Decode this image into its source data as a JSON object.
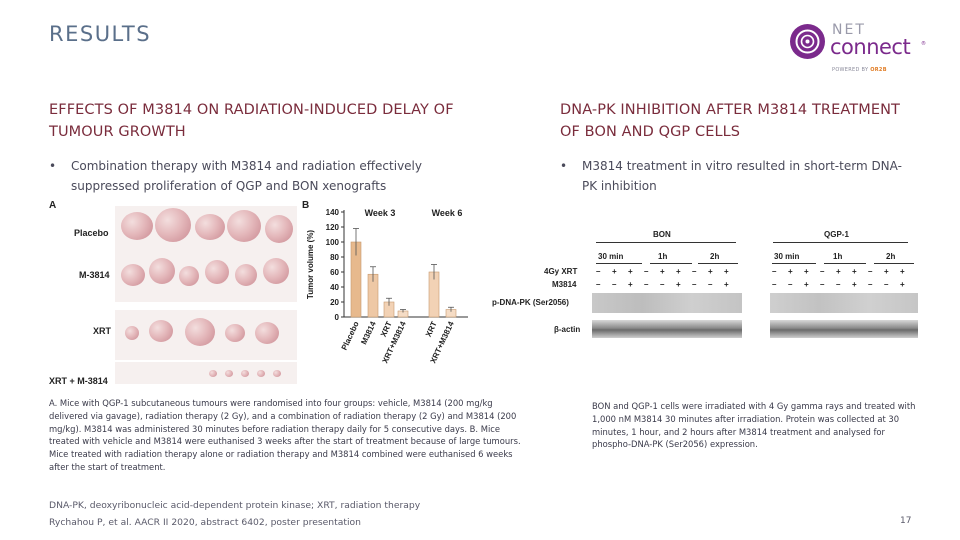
{
  "slide": {
    "title": "RESULTS",
    "page_number": "17"
  },
  "logo": {
    "line1": "NET",
    "line2": "connect",
    "powered_prefix": "POWERED BY",
    "powered_brand": "OR2B"
  },
  "left": {
    "heading": "EFFECTS OF M3814 ON RADIATION-INDUCED DELAY OF TUMOUR GROWTH",
    "bullet": "Combination therapy with M3814 and radiation effectively suppressed proliferation of QGP and BON xenografts",
    "panel_a": "A",
    "panel_b": "B",
    "rows": [
      "Placebo",
      "M-3814",
      "XRT",
      "XRT + M-3814"
    ],
    "caption": "A. Mice with QGP-1 subcutaneous tumours were randomised into four groups: vehicle, M3814 (200 mg/kg delivered via gavage), radiation therapy (2 Gy), and a combination of radiation therapy (2 Gy) and M3814 (200 mg/kg). M3814 was administered 30 minutes before radiation therapy daily for 5 consecutive days. B. Mice treated with vehicle and M3814 were euthanised 3 weeks after the start of treatment because of large tumours. Mice treated with radiation therapy alone or radiation therapy and M3814 combined were euthanised 6 weeks after the start of treatment."
  },
  "right": {
    "heading": "DNA-PK INHIBITION AFTER M3814 TREATMENT OF BON AND QGP CELLS",
    "bullet": "M3814 treatment in vitro resulted in short-term DNA-PK inhibition",
    "caption": "BON and QGP-1 cells were irradiated with 4 Gy gamma rays and treated with 1,000 nM M3814 30 minutes after irradiation. Protein was collected at 30 minutes, 1 hour, and 2 hours after M3814 treatment and analysed for phospho-DNA-PK (Ser2056) expression."
  },
  "western_blot": {
    "cell_lines": [
      "BON",
      "QGP-1"
    ],
    "timepoints": [
      "30 min",
      "1h",
      "2h"
    ],
    "row_labels": [
      "4Gy XRT",
      "M3814"
    ],
    "xrt_signs": [
      "–",
      "+",
      "+"
    ],
    "m3814_signs": [
      "–",
      "–",
      "+"
    ],
    "bands": [
      "p-DNA-PK (Ser2056)",
      "β-actin"
    ]
  },
  "chart_data": {
    "type": "bar",
    "ylabel": "Tumor volume (%)",
    "ylim": [
      0,
      140
    ],
    "yticks": [
      0,
      20,
      40,
      60,
      80,
      100,
      120,
      140
    ],
    "categories": [
      "Placebo",
      "M3814",
      "XRT",
      "XRT+M3814",
      "XRT",
      "XRT+M3814"
    ],
    "values": [
      100,
      57,
      20,
      8,
      60,
      10
    ],
    "errors": [
      18,
      10,
      5,
      2,
      10,
      3
    ],
    "groups": [
      {
        "label": "Week 3",
        "categories": [
          "Placebo",
          "M3814",
          "XRT",
          "XRT+M3814"
        ]
      },
      {
        "label": "Week 6",
        "categories": [
          "XRT",
          "XRT+M3814"
        ]
      }
    ],
    "colors": {
      "Placebo": "#e7b98d",
      "M3814": "#eec8a5",
      "XRT": "#f2d2b5",
      "XRT+M3814": "#f5dcc5"
    }
  },
  "footnote": {
    "abbreviations": "DNA-PK, deoxyribonucleic acid-dependent protein kinase; XRT, radiation therapy",
    "reference": "Rychahou P, et al. AACR II 2020, abstract 6402, poster presentation"
  }
}
